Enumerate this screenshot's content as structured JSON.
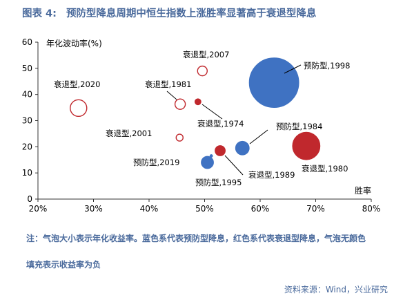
{
  "figure": {
    "label": "图表 4:",
    "title": "预防型降息周期中恒生指数上涨胜率显著高于衰退型降息"
  },
  "chart_data": {
    "type": "scatter",
    "bubble": true,
    "ylabel": "年化波动率(%)",
    "xlabel": "胜率",
    "xlim": [
      0.2,
      0.8
    ],
    "ylim": [
      0,
      60
    ],
    "xticks": [
      "20%",
      "30%",
      "40%",
      "50%",
      "60%",
      "70%",
      "80%"
    ],
    "yticks": [
      "0",
      "10",
      "20",
      "30",
      "40",
      "50",
      "60"
    ],
    "grid": false,
    "colors": {
      "preventive": "#3f72c2",
      "recession": "#c0282d",
      "axis": "#333333"
    },
    "points": [
      {
        "label": "预防型,1998",
        "x": 0.625,
        "y": 44.5,
        "size": 36,
        "type": "preventive",
        "filled": true
      },
      {
        "label": "预防型,1984",
        "x": 0.568,
        "y": 19.5,
        "size": 10,
        "type": "preventive",
        "filled": true
      },
      {
        "label": "预防型,2019",
        "x": 0.512,
        "y": 16.5,
        "size": 2,
        "type": "preventive",
        "filled": true
      },
      {
        "label": "预防型,1995",
        "x": 0.505,
        "y": 14.0,
        "size": 9,
        "type": "preventive",
        "filled": true
      },
      {
        "label": "衰退型,2007",
        "x": 0.496,
        "y": 49.0,
        "size": 7,
        "type": "recession",
        "filled": false
      },
      {
        "label": "衰退型,2020",
        "x": 0.273,
        "y": 34.8,
        "size": 12,
        "type": "recession",
        "filled": false
      },
      {
        "label": "衰退型,1981",
        "x": 0.456,
        "y": 36.3,
        "size": 7.5,
        "type": "recession",
        "filled": false
      },
      {
        "label": "衰退型,1974",
        "x": 0.488,
        "y": 37.2,
        "size": 4.5,
        "type": "recession",
        "filled": true
      },
      {
        "label": "衰退型,2001",
        "x": 0.455,
        "y": 23.5,
        "size": 5,
        "type": "recession",
        "filled": false
      },
      {
        "label": "衰退型,1989",
        "x": 0.528,
        "y": 18.5,
        "size": 7.5,
        "type": "recession",
        "filled": true
      },
      {
        "label": "衰退型,1980",
        "x": 0.683,
        "y": 20.3,
        "size": 20,
        "type": "recession",
        "filled": true
      }
    ]
  },
  "notes": {
    "line1": "注：气泡大小表示年化收益率。蓝色系代表预防型降息，红色系代表衰退型降息，气泡无颜色",
    "line2": "填充表示收益率为负"
  },
  "source": "资料来源：Wind，兴业研究"
}
